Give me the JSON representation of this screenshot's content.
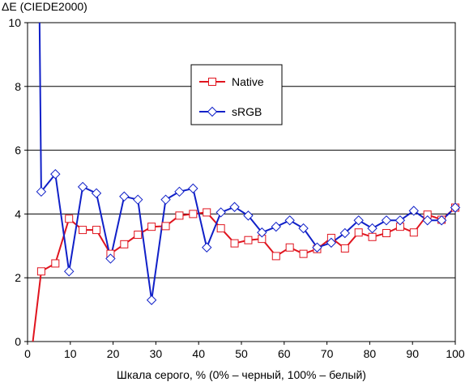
{
  "chart_data": {
    "type": "line",
    "title": "",
    "ylabel": "ΔE (CIEDE2000)",
    "xlabel": "Шкала серого, % (0% – черный, 100% – белый)",
    "xlim": [
      0,
      100
    ],
    "ylim": [
      0,
      10
    ],
    "x_ticks": [
      "0",
      "10",
      "20",
      "30",
      "40",
      "50",
      "60",
      "70",
      "80",
      "90",
      "100"
    ],
    "y_ticks": [
      "0",
      "2",
      "4",
      "6",
      "8",
      "10"
    ],
    "grid": "horizontal",
    "legend_position": "upper-center",
    "series": [
      {
        "name": "Native",
        "color": "#e0141e",
        "marker": "square",
        "x": [
          0.8,
          3.2,
          6.5,
          9.7,
          12.9,
          16.1,
          19.4,
          22.6,
          25.8,
          29.0,
          32.3,
          35.5,
          38.7,
          41.9,
          45.2,
          48.4,
          51.6,
          54.8,
          58.1,
          61.3,
          64.5,
          67.7,
          71.0,
          74.2,
          77.4,
          80.6,
          83.9,
          87.1,
          90.3,
          93.5,
          96.8,
          100
        ],
        "y": [
          -0.5,
          2.2,
          2.45,
          3.85,
          3.5,
          3.5,
          2.75,
          3.05,
          3.35,
          3.6,
          3.62,
          3.95,
          4.0,
          4.05,
          3.55,
          3.08,
          3.18,
          3.22,
          2.68,
          2.95,
          2.75,
          2.9,
          3.25,
          2.92,
          3.42,
          3.28,
          3.4,
          3.6,
          3.42,
          3.98,
          3.82,
          4.2
        ]
      },
      {
        "name": "sRGB",
        "color": "#1020c8",
        "marker": "diamond",
        "x": [
          2.8,
          3.2,
          6.5,
          9.7,
          12.9,
          16.1,
          19.4,
          22.6,
          25.8,
          29.0,
          32.3,
          35.5,
          38.7,
          41.9,
          45.2,
          48.4,
          51.6,
          54.8,
          58.1,
          61.3,
          64.5,
          67.7,
          71.0,
          74.2,
          77.4,
          80.6,
          83.9,
          87.1,
          90.3,
          93.5,
          96.8,
          100
        ],
        "y": [
          10.1,
          4.7,
          5.25,
          2.2,
          4.85,
          4.65,
          2.6,
          4.55,
          4.45,
          1.3,
          4.45,
          4.7,
          4.8,
          2.95,
          4.05,
          4.22,
          3.95,
          3.42,
          3.6,
          3.8,
          3.55,
          2.95,
          3.1,
          3.4,
          3.8,
          3.55,
          3.8,
          3.8,
          4.1,
          3.8,
          3.8,
          4.2
        ]
      }
    ]
  }
}
